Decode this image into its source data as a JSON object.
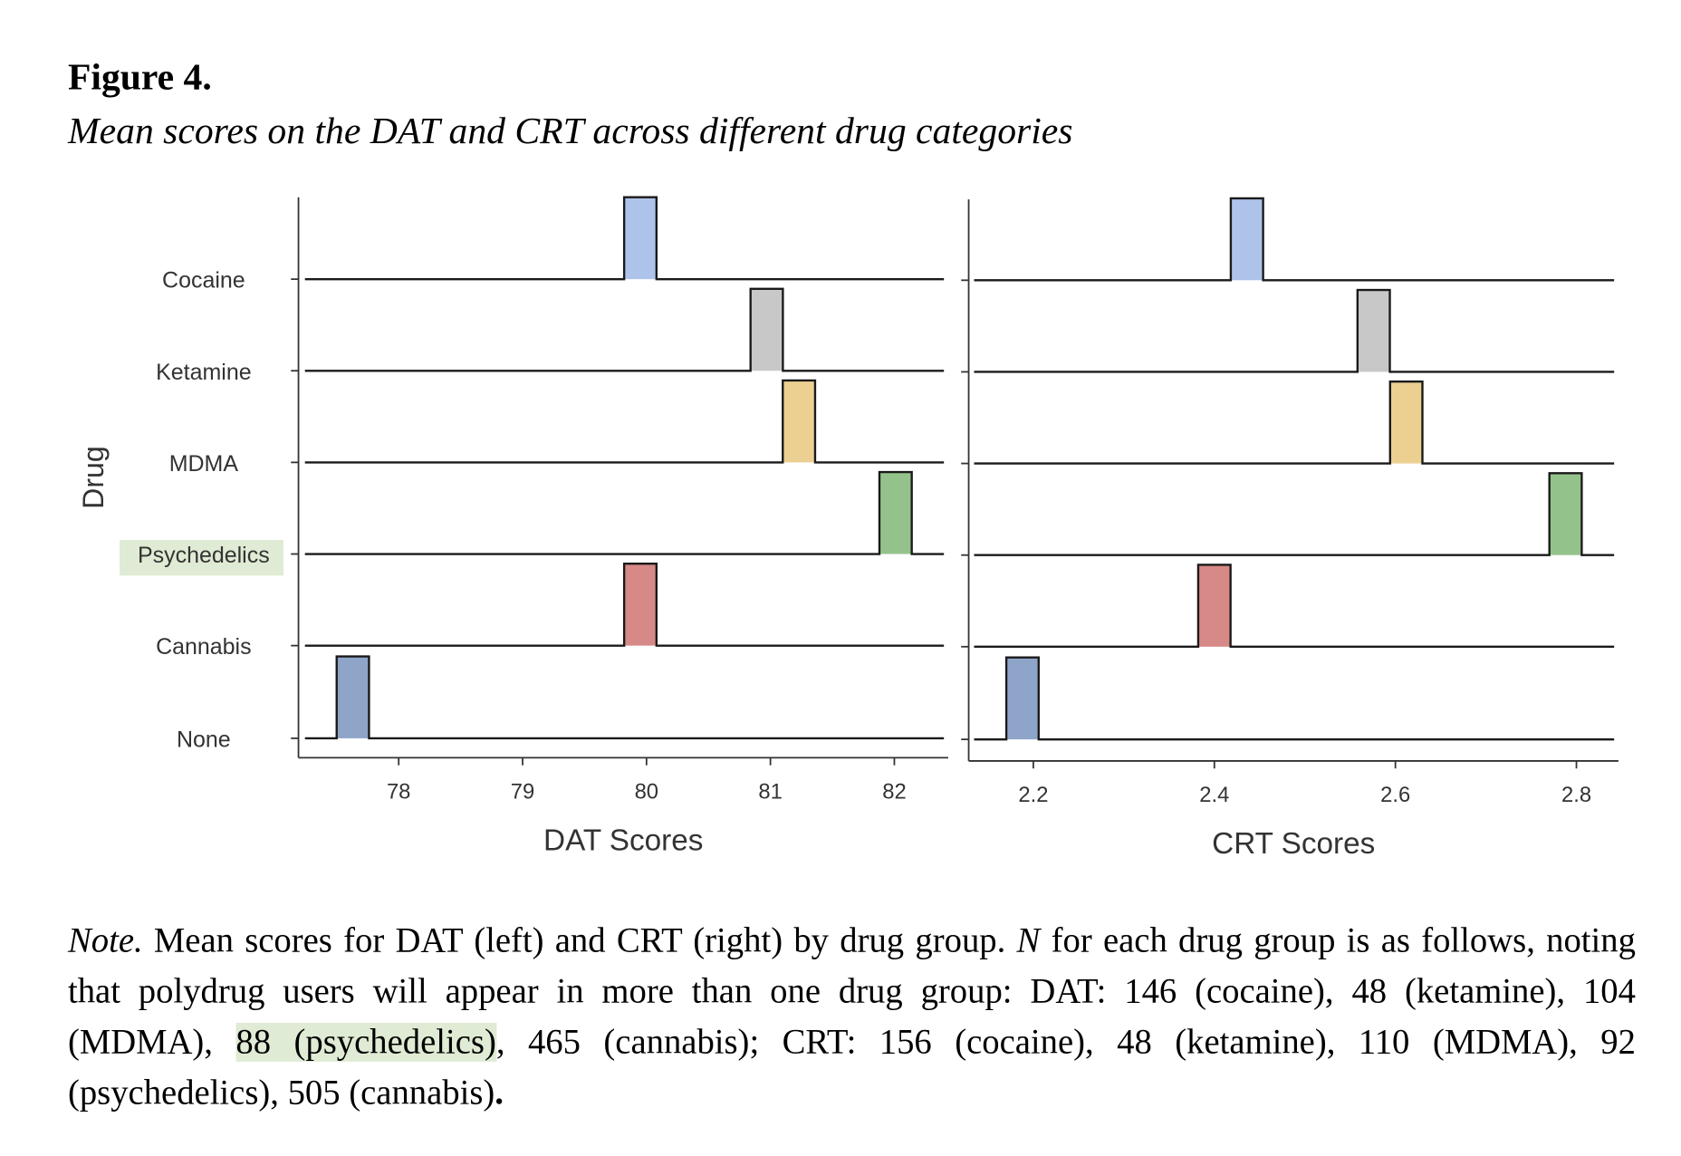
{
  "figure": {
    "label": "Figure 4.",
    "title": "Mean scores on the DAT and CRT across different drug categories"
  },
  "chart_data": [
    {
      "type": "bar",
      "title": "",
      "xlabel": "DAT Scores",
      "ylabel": "Drug",
      "categories": [
        "Cocaine",
        "Ketamine",
        "MDMA",
        "Psychedelics",
        "Cannabis",
        "None"
      ],
      "values": [
        79.95,
        80.97,
        81.23,
        82.01,
        79.95,
        77.63
      ],
      "xticks": [
        "78",
        "79",
        "80",
        "81",
        "82"
      ],
      "xtick_values": [
        78,
        79,
        80,
        81,
        82
      ],
      "xlim": [
        77.2,
        82.45
      ],
      "colors": [
        "#aec3ea",
        "#c8c8c8",
        "#ecd092",
        "#94c28b",
        "#d68986",
        "#8ea5c9"
      ],
      "highlighted_category": "Psychedelics"
    },
    {
      "type": "bar",
      "title": "",
      "xlabel": "CRT Scores",
      "ylabel": "",
      "categories": [
        "Cocaine",
        "Ketamine",
        "MDMA",
        "Psychedelics",
        "Cannabis",
        "None"
      ],
      "values": [
        2.436,
        2.576,
        2.612,
        2.788,
        2.4,
        2.188
      ],
      "xticks": [
        "2.2",
        "2.4",
        "2.6",
        "2.8"
      ],
      "xtick_values": [
        2.2,
        2.4,
        2.6,
        2.8
      ],
      "xlim": [
        2.13,
        2.845
      ],
      "colors": [
        "#aec3ea",
        "#c8c8c8",
        "#ecd092",
        "#94c28b",
        "#d68986",
        "#8ea5c9"
      ]
    }
  ],
  "note": {
    "lead": "Note.",
    "t1": " Mean scores for DAT (left) and CRT (right) by drug group. ",
    "n": "N",
    "t2": " for each drug group is as follows, noting that polydrug users will appear in more than one drug group: DAT: 146 (cocaine), 48 (ketamine), 104 (MDMA), ",
    "highlight": "88 (psychedelics)",
    "t3": ", 465 (cannabis); CRT: 156 (cocaine), 48 (ketamine), 110 (MDMA), 92 (psychedelics), 505 (cannabis)",
    "end": "."
  }
}
